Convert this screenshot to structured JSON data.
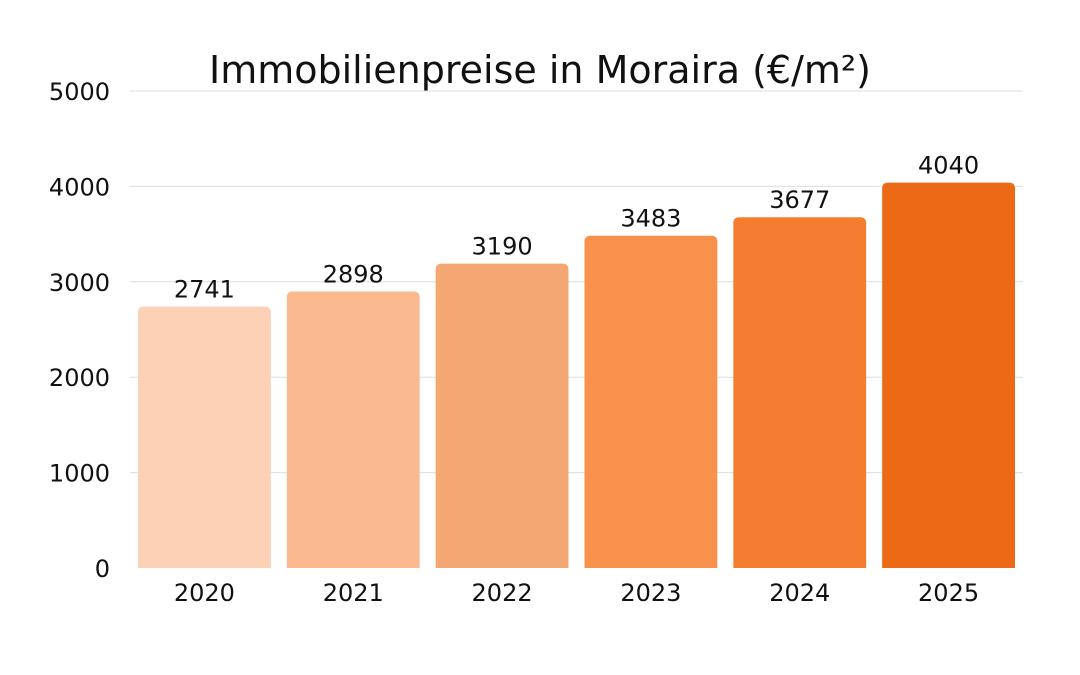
{
  "chart_data": {
    "type": "bar",
    "title": "Immobilienpreise in Moraira (€/m²)",
    "xlabel": "",
    "ylabel": "",
    "categories": [
      "2020",
      "2021",
      "2022",
      "2023",
      "2024",
      "2025"
    ],
    "values": [
      2741,
      2898,
      3190,
      3483,
      3677,
      4040
    ],
    "data_labels": [
      "2741",
      "2898",
      "3190",
      "3483",
      "3677",
      "4040"
    ],
    "ylim": [
      0,
      5000
    ],
    "yticks": [
      0,
      1000,
      2000,
      3000,
      4000,
      5000
    ],
    "ytick_labels": [
      "0",
      "1000",
      "2000",
      "3000",
      "4000",
      "5000"
    ],
    "grid": true,
    "legend": "none",
    "bar_colors": [
      "#fcd1b5",
      "#fab98f",
      "#f4a772",
      "#f8914c",
      "#f57d30",
      "#ec6a15"
    ]
  }
}
